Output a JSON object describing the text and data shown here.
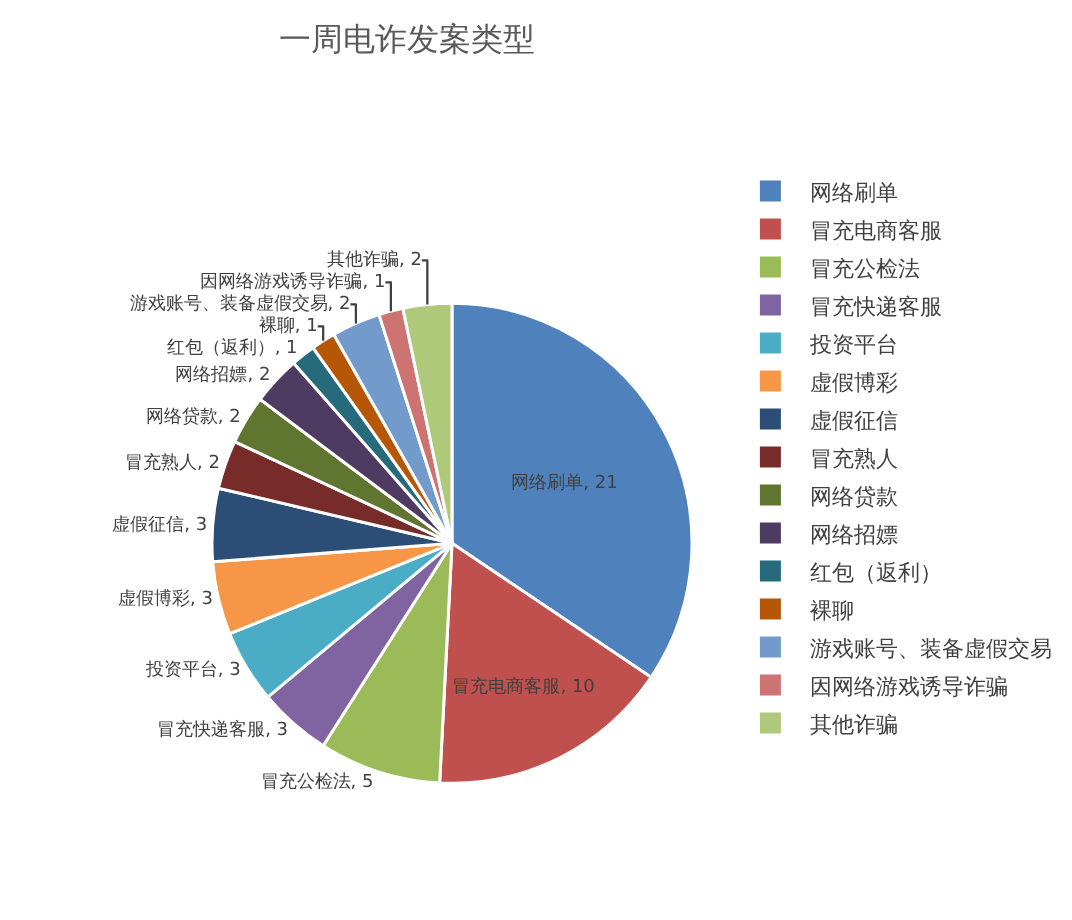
{
  "chart_data": {
    "type": "pie",
    "title": "一周电诈发案类型",
    "categories": [
      "网络刷单",
      "冒充电商客服",
      "冒充公检法",
      "冒充快递客服",
      "投资平台",
      "虚假博彩",
      "虚假征信",
      "冒充熟人",
      "网络贷款",
      "网络招嫖",
      "红包（返利）",
      "裸聊",
      "游戏账号、装备虚假交易",
      "因网络游戏诱导诈骗",
      "其他诈骗"
    ],
    "values": [
      21,
      10,
      5,
      3,
      3,
      3,
      3,
      2,
      2,
      2,
      1,
      1,
      2,
      1,
      2
    ],
    "colors": [
      "#4f81bd",
      "#c0504d",
      "#9bbb59",
      "#8064a2",
      "#4bacc6",
      "#f79646",
      "#2c4d75",
      "#772c2a",
      "#5f7530",
      "#4d3b62",
      "#276a7c",
      "#b65708",
      "#729aca",
      "#cd7371",
      "#afc97a"
    ],
    "value_labels": [
      "网络刷单, 21",
      "冒充电商客服, 10",
      "冒充公检法, 5",
      "冒充快递客服, 3",
      "投资平台, 3",
      "虚假博彩, 3",
      "虚假征信, 3",
      "冒充熟人, 2",
      "网络贷款, 2",
      "网络招嫖, 2",
      "红包（返利）, 1",
      "裸聊, 1",
      "游戏账号、装备虚假交易, 2",
      "因网络游戏诱导诈骗, 1",
      "其他诈骗, 2"
    ],
    "legend": "right"
  }
}
